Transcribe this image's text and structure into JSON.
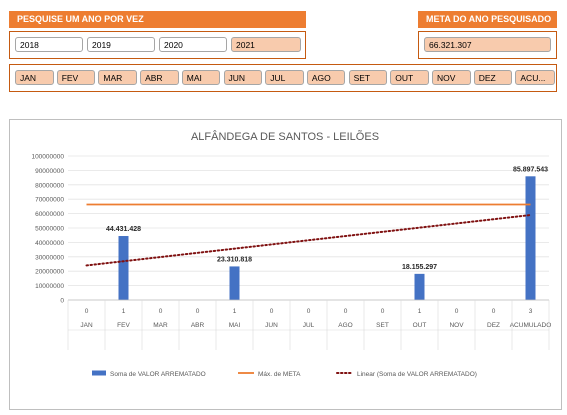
{
  "search_panel": {
    "title": "PESQUISE UM ANO POR VEZ",
    "years": [
      {
        "label": "2018",
        "selected": false
      },
      {
        "label": "2019",
        "selected": false
      },
      {
        "label": "2020",
        "selected": false
      },
      {
        "label": "2021",
        "selected": true
      }
    ],
    "months": [
      "JAN",
      "FEV",
      "MAR",
      "ABR",
      "MAI",
      "JUN",
      "JUL",
      "AGO",
      "SET",
      "OUT",
      "NOV",
      "DEZ",
      "ACU..."
    ]
  },
  "meta_panel": {
    "title": "META DO ANO PESQUISADO",
    "value": "66.321.307"
  },
  "colors": {
    "accent": "#ed7d31",
    "button_fill": "#f8cbad",
    "bar": "#4472c4",
    "meta_line": "#ed7d31",
    "trend_line": "#7f1010"
  },
  "chart_data": {
    "type": "bar",
    "title": "ALFÂNDEGA DE SANTOS - LEILÕES",
    "categories": [
      "JAN",
      "FEV",
      "MAR",
      "ABR",
      "MAI",
      "JUN",
      "JUL",
      "AGO",
      "SET",
      "OUT",
      "NOV",
      "DEZ",
      "ACUMULADO"
    ],
    "counts": [
      "0",
      "1",
      "0",
      "0",
      "1",
      "0",
      "0",
      "0",
      "0",
      "1",
      "0",
      "0",
      "3"
    ],
    "values": [
      0,
      44431428,
      0,
      0,
      23310818,
      0,
      0,
      0,
      0,
      18155297,
      0,
      0,
      85897543
    ],
    "data_labels": [
      "",
      "44.431.428",
      "",
      "",
      "23.310.818",
      "",
      "",
      "",
      "",
      "18.155.297",
      "",
      "",
      "85.897.543"
    ],
    "meta_value": 66321307,
    "trend_start": 24000000,
    "trend_end": 59000000,
    "ylim": [
      0,
      100000000
    ],
    "y_ticks": [
      "0",
      "10000000",
      "20000000",
      "30000000",
      "40000000",
      "50000000",
      "60000000",
      "70000000",
      "80000000",
      "90000000",
      "100000000"
    ],
    "grid": true,
    "legend": {
      "position": "bottom",
      "entries": [
        "Soma de VALOR ARREMATADO",
        "Máx. de META",
        "Linear (Soma de VALOR ARREMATADO)"
      ]
    }
  }
}
